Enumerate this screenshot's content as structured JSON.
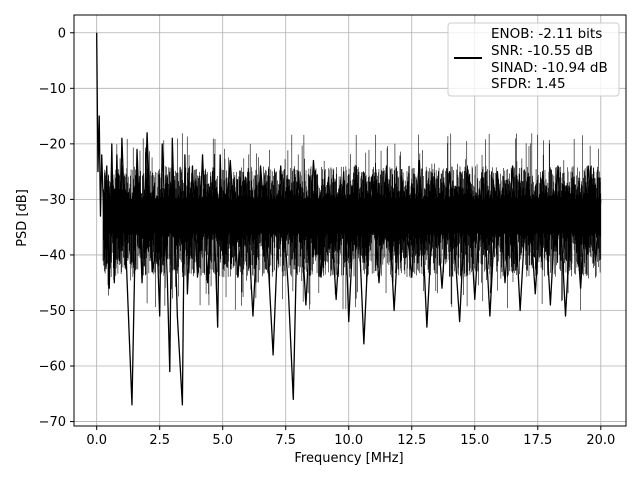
{
  "chart_data": {
    "type": "line",
    "title": "",
    "xlabel": "Frequency [MHz]",
    "ylabel": "PSD [dB]",
    "xlim": [
      -0.9,
      21.0
    ],
    "ylim": [
      -70.8,
      3.2
    ],
    "x_ticks": [
      0.0,
      2.5,
      5.0,
      7.5,
      10.0,
      12.5,
      15.0,
      17.5,
      20.0
    ],
    "x_tick_labels": [
      "0.0",
      "2.5",
      "5.0",
      "7.5",
      "10.0",
      "12.5",
      "15.0",
      "17.5",
      "20.0"
    ],
    "y_ticks": [
      0,
      -10,
      -20,
      -30,
      -40,
      -50,
      -60,
      -70
    ],
    "y_tick_labels": [
      "0",
      "−10",
      "−20",
      "−30",
      "−40",
      "−50",
      "−60",
      "−70"
    ],
    "grid": true,
    "legend_position": "top-right",
    "legend_entries": [
      "ENOB: -2.11 bits",
      "SNR: -10.55 dB",
      "SINAD: -10.94 dB",
      "SFDR: 1.45"
    ],
    "series_color": "#000000",
    "series": [
      {
        "x": [
          0.0,
          0.05,
          0.1,
          0.15,
          0.2,
          0.3,
          0.4,
          0.5,
          0.6,
          0.7,
          0.8,
          0.9,
          1.0,
          1.2,
          1.4,
          1.6,
          1.8,
          2.0,
          2.2,
          2.4,
          2.5,
          2.6,
          2.8,
          2.9,
          3.0,
          3.2,
          3.4,
          3.5,
          3.6,
          3.8,
          4.0,
          4.2,
          4.4,
          4.6,
          4.8,
          4.9,
          5.0,
          5.3,
          5.6,
          5.9,
          6.2,
          6.5,
          6.8,
          7.0,
          7.3,
          7.6,
          7.8,
          8.0,
          8.3,
          8.6,
          8.9,
          9.2,
          9.5,
          9.8,
          10.0,
          10.3,
          10.6,
          10.9,
          11.2,
          11.5,
          11.8,
          12.1,
          12.5,
          12.8,
          13.1,
          13.4,
          13.7,
          14.0,
          14.4,
          14.7,
          15.0,
          15.3,
          15.6,
          15.9,
          16.2,
          16.5,
          16.8,
          17.1,
          17.4,
          17.7,
          18.0,
          18.3,
          18.6,
          18.9,
          19.2,
          19.5,
          19.8,
          20.0
        ],
        "y": [
          0.0,
          -25.0,
          -15.0,
          -33.0,
          -22.0,
          -36.0,
          -24.0,
          -46.0,
          -20.0,
          -45.0,
          -22.0,
          -41.0,
          -19.0,
          -44.0,
          -67.0,
          -21.0,
          -45.0,
          -18.0,
          -43.0,
          -38.0,
          -51.0,
          -20.0,
          -44.0,
          -61.0,
          -19.0,
          -51.0,
          -67.0,
          -22.0,
          -47.0,
          -24.0,
          -44.0,
          -22.0,
          -45.0,
          -25.0,
          -53.0,
          -22.0,
          -40.0,
          -23.0,
          -44.0,
          -26.0,
          -51.0,
          -24.0,
          -41.0,
          -58.0,
          -24.0,
          -46.0,
          -66.0,
          -25.0,
          -49.0,
          -23.0,
          -44.0,
          -26.0,
          -48.0,
          -25.0,
          -52.0,
          -24.0,
          -56.0,
          -26.0,
          -45.0,
          -24.0,
          -50.0,
          -26.0,
          -44.0,
          -23.0,
          -53.0,
          -26.0,
          -46.0,
          -25.0,
          -52.0,
          -24.0,
          -48.0,
          -26.0,
          -51.0,
          -25.0,
          -45.0,
          -24.0,
          -50.0,
          -26.0,
          -47.0,
          -25.0,
          -49.0,
          -24.0,
          -51.0,
          -26.0,
          -46.0,
          -24.0,
          -41.0,
          -30.0
        ]
      }
    ]
  }
}
